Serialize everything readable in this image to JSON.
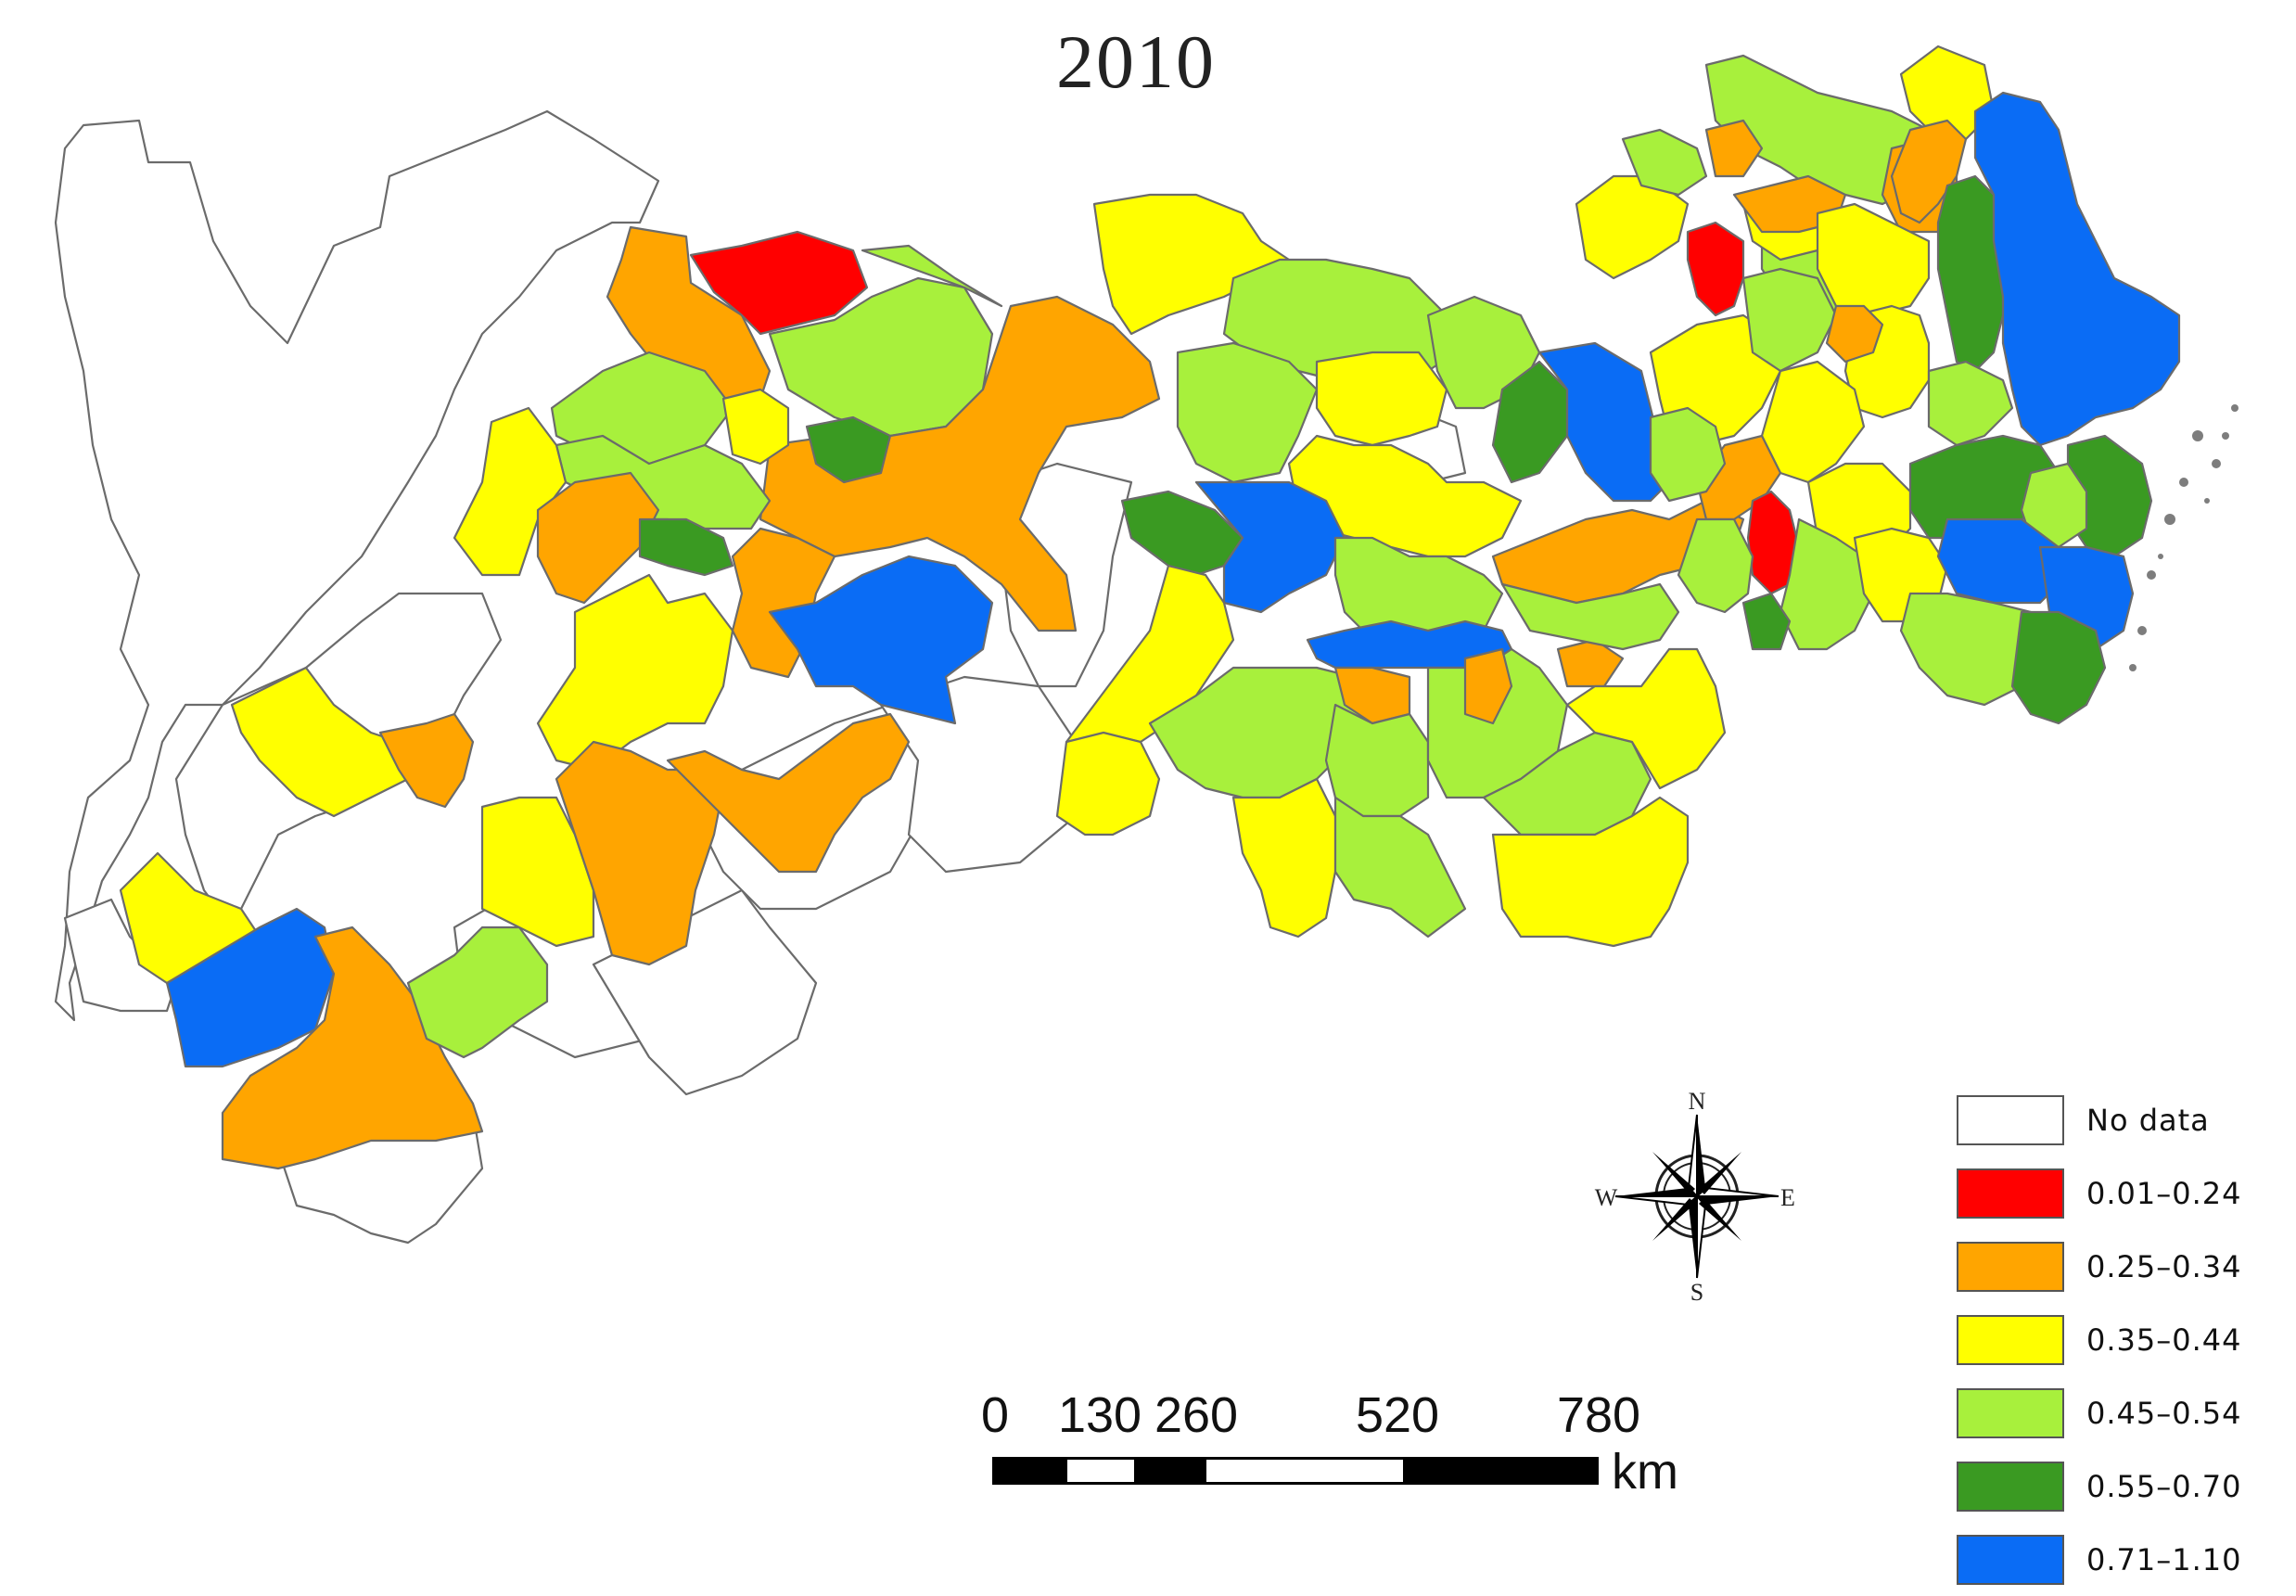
{
  "title": "2010",
  "legend": {
    "items": [
      {
        "label": "No data",
        "color": "#ffffff"
      },
      {
        "label": "0.01–0.24",
        "color": "#ff0000"
      },
      {
        "label": "0.25–0.34",
        "color": "#ffa500"
      },
      {
        "label": "0.35–0.44",
        "color": "#ffff00"
      },
      {
        "label": "0.45–0.54",
        "color": "#a8f03c"
      },
      {
        "label": "0.55–0.70",
        "color": "#3a9a22"
      },
      {
        "label": "0.71–1.10",
        "color": "#0a6cf5"
      }
    ]
  },
  "scale_bar": {
    "ticks": [
      "0",
      "130",
      "260",
      "520",
      "780"
    ],
    "unit": "km"
  },
  "compass": {
    "north": "N",
    "south": "S",
    "east": "E",
    "west": "W"
  }
}
